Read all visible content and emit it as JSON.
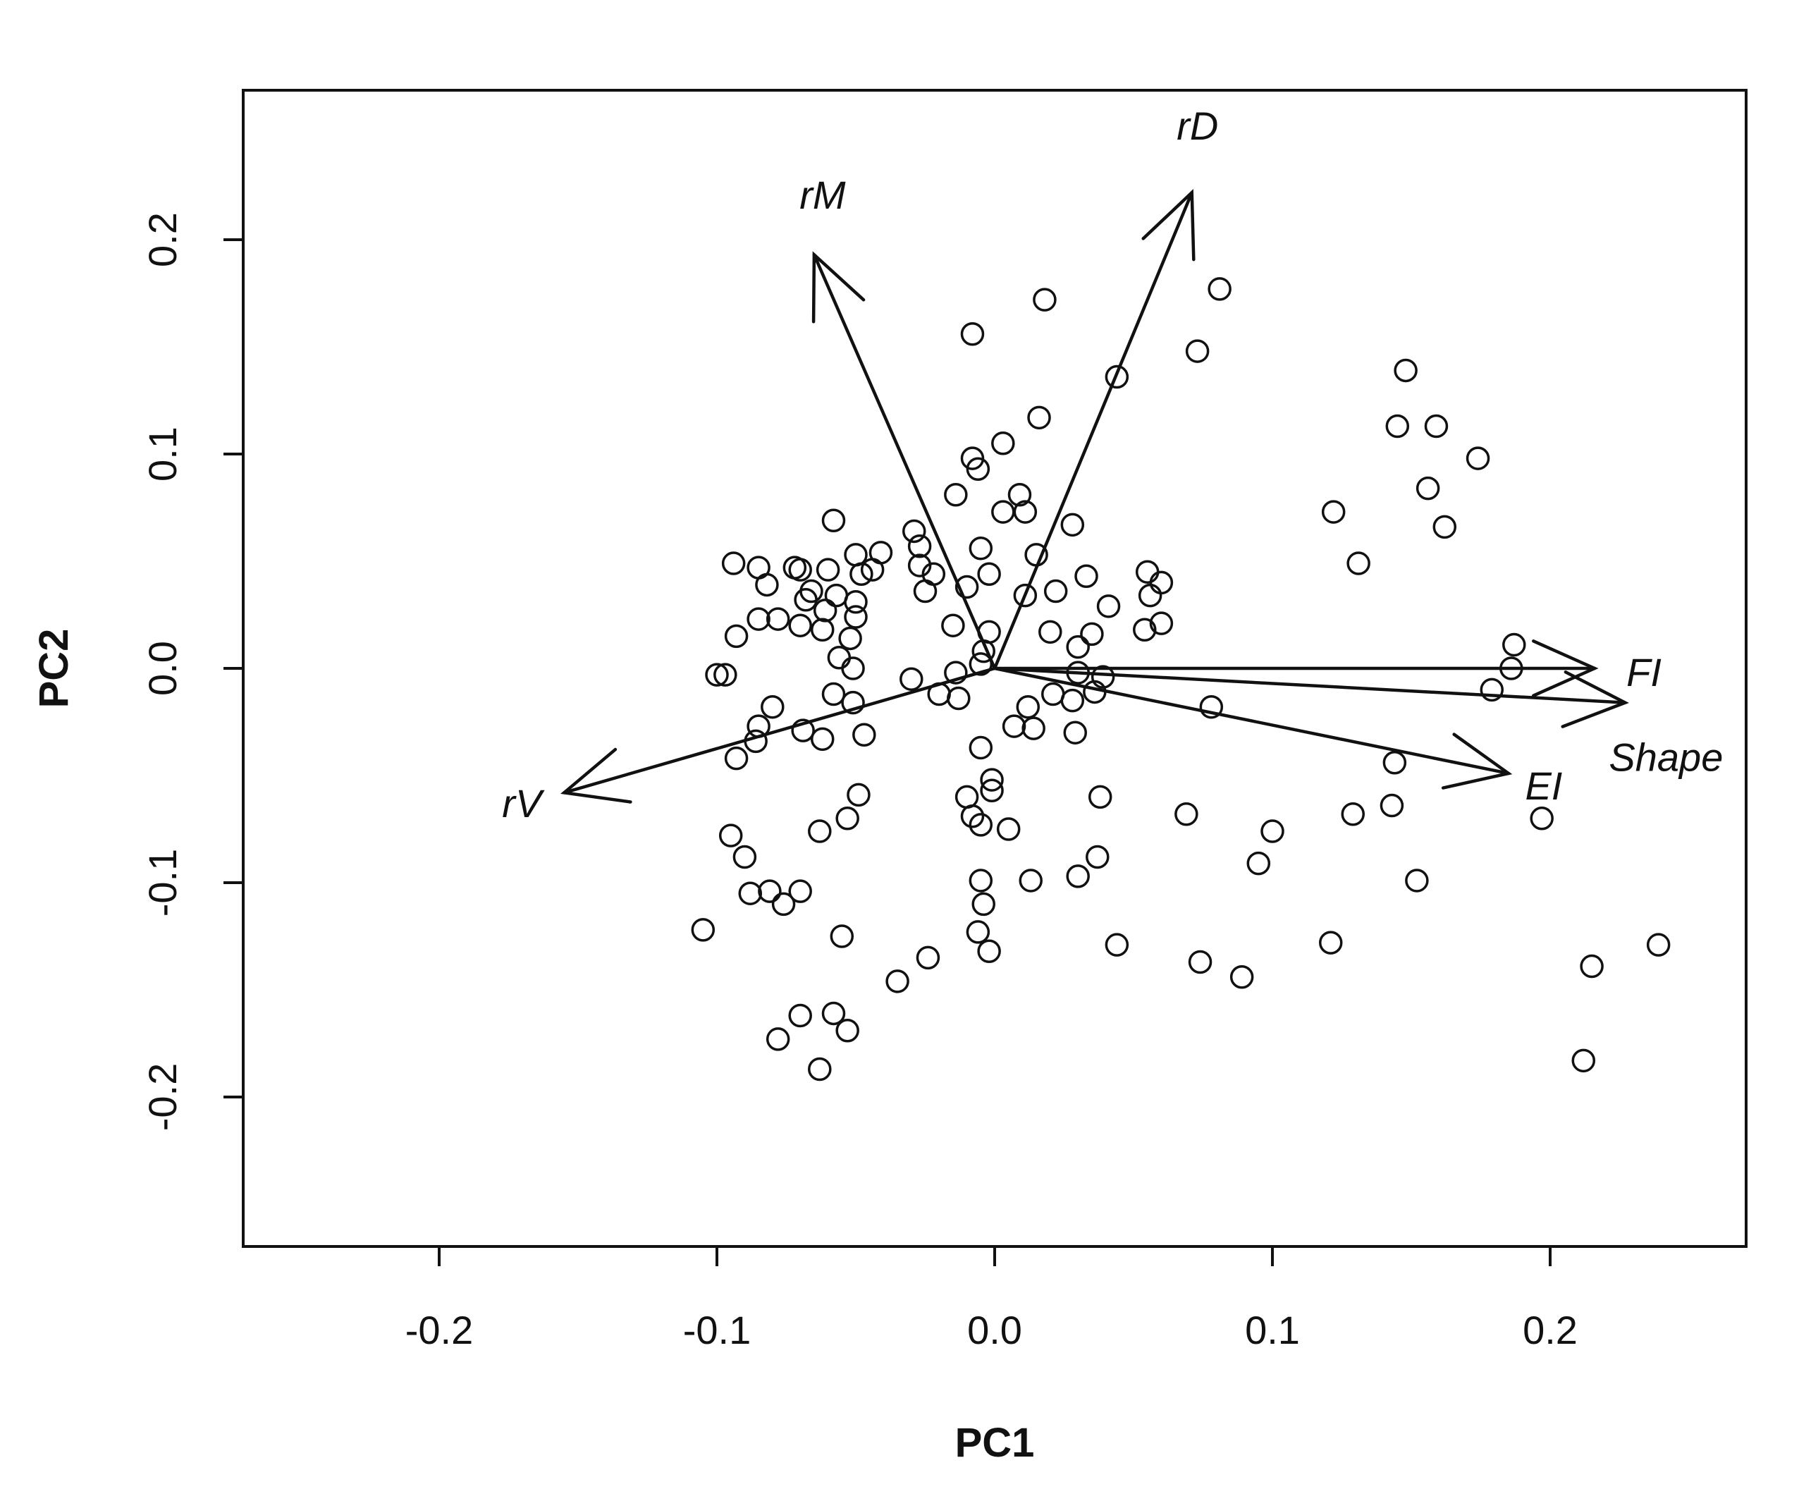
{
  "chart_data": {
    "type": "scatter",
    "subtype": "pca-biplot",
    "title": "",
    "xlabel": "PC1",
    "ylabel": "PC2",
    "xlim": [
      -0.27,
      0.27
    ],
    "ylim": [
      -0.27,
      0.27
    ],
    "xticks": [
      -0.2,
      -0.1,
      0.0,
      0.1,
      0.2
    ],
    "xtick_labels": [
      "-0.2",
      "-0.1",
      "0.0",
      "0.1",
      "0.2"
    ],
    "yticks": [
      -0.2,
      -0.1,
      0.0,
      0.1,
      0.2
    ],
    "ytick_labels": [
      "-0.2",
      "-0.1",
      "0.0",
      "0.1",
      "0.2"
    ],
    "grid": false,
    "marker": "open-circle",
    "vectors": [
      {
        "label": "rD",
        "x": 0.071,
        "y": 0.222
      },
      {
        "label": "rM",
        "x": -0.065,
        "y": 0.193
      },
      {
        "label": "FI",
        "x": 0.216,
        "y": 0.0
      },
      {
        "label": "Shape",
        "x": 0.227,
        "y": -0.016
      },
      {
        "label": "EI",
        "x": 0.185,
        "y": -0.049
      },
      {
        "label": "rV",
        "x": -0.155,
        "y": -0.058
      }
    ],
    "points": [
      {
        "x": 0.018,
        "y": 0.172
      },
      {
        "x": 0.081,
        "y": 0.177
      },
      {
        "x": -0.008,
        "y": 0.156
      },
      {
        "x": 0.073,
        "y": 0.148
      },
      {
        "x": 0.044,
        "y": 0.136
      },
      {
        "x": 0.148,
        "y": 0.139
      },
      {
        "x": 0.145,
        "y": 0.113
      },
      {
        "x": 0.159,
        "y": 0.113
      },
      {
        "x": 0.174,
        "y": 0.098
      },
      {
        "x": 0.156,
        "y": 0.084
      },
      {
        "x": 0.162,
        "y": 0.066
      },
      {
        "x": 0.122,
        "y": 0.073
      },
      {
        "x": 0.131,
        "y": 0.049
      },
      {
        "x": 0.016,
        "y": 0.117
      },
      {
        "x": 0.003,
        "y": 0.105
      },
      {
        "x": -0.008,
        "y": 0.098
      },
      {
        "x": -0.006,
        "y": 0.093
      },
      {
        "x": -0.014,
        "y": 0.081
      },
      {
        "x": 0.009,
        "y": 0.081
      },
      {
        "x": 0.011,
        "y": 0.073
      },
      {
        "x": 0.003,
        "y": 0.073
      },
      {
        "x": 0.028,
        "y": 0.067
      },
      {
        "x": -0.058,
        "y": 0.069
      },
      {
        "x": -0.029,
        "y": 0.064
      },
      {
        "x": -0.027,
        "y": 0.057
      },
      {
        "x": -0.005,
        "y": 0.056
      },
      {
        "x": 0.015,
        "y": 0.053
      },
      {
        "x": -0.041,
        "y": 0.054
      },
      {
        "x": -0.05,
        "y": 0.053
      },
      {
        "x": -0.027,
        "y": 0.048
      },
      {
        "x": -0.044,
        "y": 0.046
      },
      {
        "x": -0.06,
        "y": 0.046
      },
      {
        "x": -0.072,
        "y": 0.047
      },
      {
        "x": -0.085,
        "y": 0.047
      },
      {
        "x": -0.094,
        "y": 0.049
      },
      {
        "x": -0.082,
        "y": 0.039
      },
      {
        "x": -0.07,
        "y": 0.046
      },
      {
        "x": -0.048,
        "y": 0.044
      },
      {
        "x": -0.022,
        "y": 0.044
      },
      {
        "x": -0.002,
        "y": 0.044
      },
      {
        "x": 0.033,
        "y": 0.043
      },
      {
        "x": 0.055,
        "y": 0.045
      },
      {
        "x": 0.06,
        "y": 0.04
      },
      {
        "x": -0.066,
        "y": 0.036
      },
      {
        "x": -0.057,
        "y": 0.034
      },
      {
        "x": -0.05,
        "y": 0.031
      },
      {
        "x": -0.025,
        "y": 0.036
      },
      {
        "x": -0.01,
        "y": 0.038
      },
      {
        "x": 0.011,
        "y": 0.034
      },
      {
        "x": 0.022,
        "y": 0.036
      },
      {
        "x": 0.041,
        "y": 0.029
      },
      {
        "x": 0.056,
        "y": 0.034
      },
      {
        "x": -0.068,
        "y": 0.032
      },
      {
        "x": -0.061,
        "y": 0.027
      },
      {
        "x": -0.05,
        "y": 0.024
      },
      {
        "x": -0.085,
        "y": 0.023
      },
      {
        "x": -0.078,
        "y": 0.023
      },
      {
        "x": -0.07,
        "y": 0.02
      },
      {
        "x": -0.062,
        "y": 0.018
      },
      {
        "x": -0.052,
        "y": 0.014
      },
      {
        "x": -0.093,
        "y": 0.015
      },
      {
        "x": -0.015,
        "y": 0.02
      },
      {
        "x": -0.002,
        "y": 0.017
      },
      {
        "x": 0.02,
        "y": 0.017
      },
      {
        "x": 0.035,
        "y": 0.016
      },
      {
        "x": 0.054,
        "y": 0.018
      },
      {
        "x": 0.06,
        "y": 0.021
      },
      {
        "x": 0.187,
        "y": 0.011
      },
      {
        "x": -0.056,
        "y": 0.005
      },
      {
        "x": -0.004,
        "y": 0.008
      },
      {
        "x": 0.03,
        "y": 0.01
      },
      {
        "x": 0.186,
        "y": 0.0
      },
      {
        "x": -0.1,
        "y": -0.003
      },
      {
        "x": -0.097,
        "y": -0.003
      },
      {
        "x": -0.051,
        "y": 0.0
      },
      {
        "x": -0.03,
        "y": -0.005
      },
      {
        "x": -0.014,
        "y": -0.002
      },
      {
        "x": -0.005,
        "y": 0.002
      },
      {
        "x": 0.03,
        "y": -0.002
      },
      {
        "x": 0.039,
        "y": -0.004
      },
      {
        "x": -0.058,
        "y": -0.012
      },
      {
        "x": -0.051,
        "y": -0.016
      },
      {
        "x": -0.02,
        "y": -0.012
      },
      {
        "x": -0.013,
        "y": -0.014
      },
      {
        "x": 0.012,
        "y": -0.018
      },
      {
        "x": 0.021,
        "y": -0.012
      },
      {
        "x": 0.028,
        "y": -0.015
      },
      {
        "x": 0.036,
        "y": -0.011
      },
      {
        "x": 0.078,
        "y": -0.018
      },
      {
        "x": 0.179,
        "y": -0.01
      },
      {
        "x": -0.08,
        "y": -0.018
      },
      {
        "x": -0.085,
        "y": -0.027
      },
      {
        "x": -0.086,
        "y": -0.034
      },
      {
        "x": -0.069,
        "y": -0.029
      },
      {
        "x": -0.062,
        "y": -0.033
      },
      {
        "x": -0.047,
        "y": -0.031
      },
      {
        "x": 0.007,
        "y": -0.027
      },
      {
        "x": 0.014,
        "y": -0.028
      },
      {
        "x": 0.029,
        "y": -0.03
      },
      {
        "x": -0.005,
        "y": -0.037
      },
      {
        "x": -0.093,
        "y": -0.042
      },
      {
        "x": 0.144,
        "y": -0.044
      },
      {
        "x": -0.001,
        "y": -0.052
      },
      {
        "x": -0.001,
        "y": -0.057
      },
      {
        "x": -0.049,
        "y": -0.059
      },
      {
        "x": -0.01,
        "y": -0.06
      },
      {
        "x": 0.038,
        "y": -0.06
      },
      {
        "x": -0.053,
        "y": -0.07
      },
      {
        "x": -0.008,
        "y": -0.069
      },
      {
        "x": -0.005,
        "y": -0.073
      },
      {
        "x": 0.005,
        "y": -0.075
      },
      {
        "x": 0.069,
        "y": -0.068
      },
      {
        "x": 0.129,
        "y": -0.068
      },
      {
        "x": 0.143,
        "y": -0.064
      },
      {
        "x": 0.1,
        "y": -0.076
      },
      {
        "x": -0.063,
        "y": -0.076
      },
      {
        "x": -0.095,
        "y": -0.078
      },
      {
        "x": 0.197,
        "y": -0.07
      },
      {
        "x": -0.09,
        "y": -0.088
      },
      {
        "x": 0.037,
        "y": -0.088
      },
      {
        "x": 0.095,
        "y": -0.091
      },
      {
        "x": -0.005,
        "y": -0.099
      },
      {
        "x": 0.013,
        "y": -0.099
      },
      {
        "x": 0.03,
        "y": -0.097
      },
      {
        "x": 0.152,
        "y": -0.099
      },
      {
        "x": -0.088,
        "y": -0.105
      },
      {
        "x": -0.081,
        "y": -0.104
      },
      {
        "x": -0.07,
        "y": -0.104
      },
      {
        "x": -0.076,
        "y": -0.11
      },
      {
        "x": -0.004,
        "y": -0.11
      },
      {
        "x": -0.105,
        "y": -0.122
      },
      {
        "x": -0.055,
        "y": -0.125
      },
      {
        "x": -0.006,
        "y": -0.123
      },
      {
        "x": -0.002,
        "y": -0.132
      },
      {
        "x": 0.044,
        "y": -0.129
      },
      {
        "x": 0.121,
        "y": -0.128
      },
      {
        "x": 0.239,
        "y": -0.129
      },
      {
        "x": -0.024,
        "y": -0.135
      },
      {
        "x": 0.074,
        "y": -0.137
      },
      {
        "x": 0.215,
        "y": -0.139
      },
      {
        "x": 0.089,
        "y": -0.144
      },
      {
        "x": -0.035,
        "y": -0.146
      },
      {
        "x": -0.07,
        "y": -0.162
      },
      {
        "x": -0.058,
        "y": -0.161
      },
      {
        "x": -0.053,
        "y": -0.169
      },
      {
        "x": -0.078,
        "y": -0.173
      },
      {
        "x": -0.063,
        "y": -0.187
      },
      {
        "x": 0.212,
        "y": -0.183
      }
    ]
  }
}
